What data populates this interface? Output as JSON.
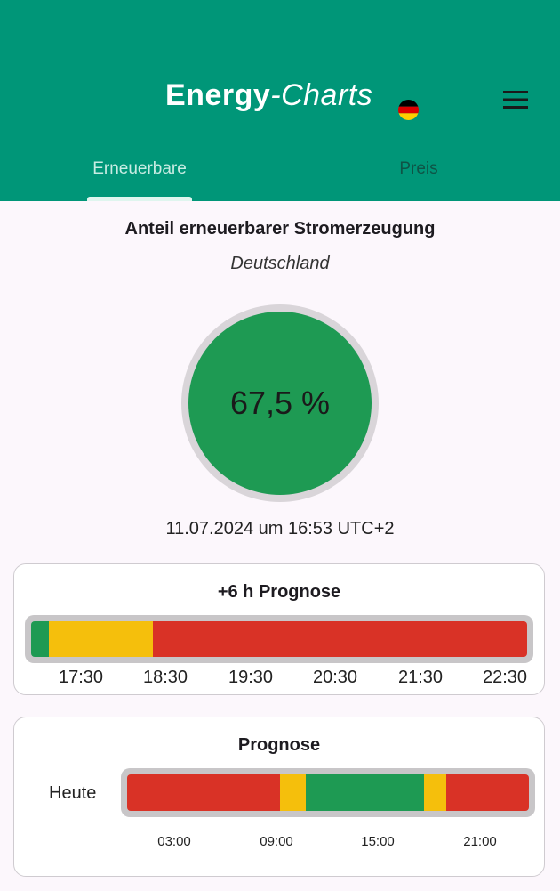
{
  "appbar": {
    "brand_bold": "Energy",
    "brand_italic": "-Charts",
    "flag_icon": "germany-flag-icon",
    "menu_icon": "hamburger-menu-icon"
  },
  "tabs": [
    {
      "label": "Erneuerbare",
      "selected": true
    },
    {
      "label": "Preis",
      "selected": false
    }
  ],
  "main": {
    "title": "Anteil erneuerbarer Stromerzeugung",
    "subtitle": "Deutschland",
    "gauge_value": "67,5 %",
    "timestamp": "11.07.2024 um 16:53 UTC+2"
  },
  "forecast6h": {
    "title": "+6 h Prognose",
    "ticks": [
      "17:30",
      "18:30",
      "19:30",
      "20:30",
      "21:30",
      "22:30"
    ],
    "segments": [
      {
        "color": "#1e9a53",
        "from": 0.0,
        "to": 0.035
      },
      {
        "color": "#f5bf0c",
        "from": 0.035,
        "to": 0.245
      },
      {
        "color": "#d93226",
        "from": 0.245,
        "to": 1.0
      }
    ]
  },
  "forecastDay": {
    "title": "Prognose",
    "row_label": "Heute",
    "ticks": [
      "03:00",
      "09:00",
      "15:00",
      "21:00"
    ],
    "segments": [
      {
        "color": "#d93226",
        "from": 0.0,
        "to": 0.38
      },
      {
        "color": "#f5bf0c",
        "from": 0.38,
        "to": 0.445
      },
      {
        "color": "#1e9a53",
        "from": 0.445,
        "to": 0.74
      },
      {
        "color": "#f5bf0c",
        "from": 0.74,
        "to": 0.795
      },
      {
        "color": "#d93226",
        "from": 0.795,
        "to": 1.0
      }
    ]
  },
  "colors": {
    "appbar": "#009678",
    "renewable_green": "#1e9a53",
    "warn_yellow": "#f5bf0c",
    "bad_red": "#d93226"
  }
}
